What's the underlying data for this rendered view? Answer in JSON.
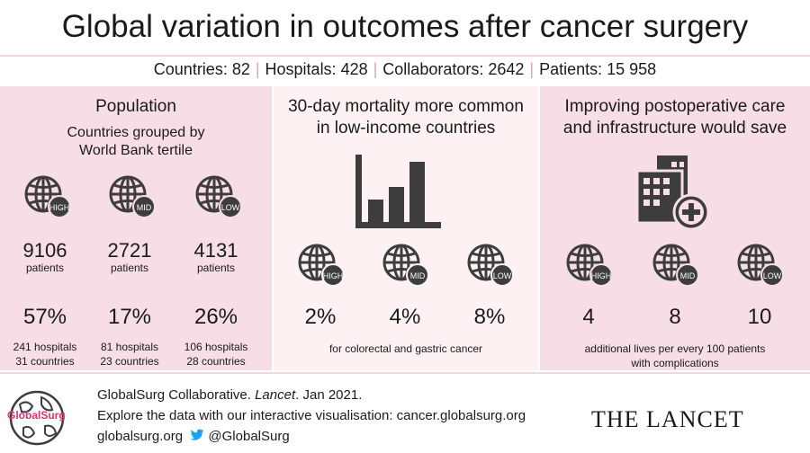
{
  "title": "Global variation in outcomes after cancer surgery",
  "stats": {
    "countries": "Countries: 82",
    "hospitals": "Hospitals: 428",
    "collaborators": "Collaborators: 2642",
    "patients": "Patients: 15 958",
    "separator": "|"
  },
  "population": {
    "title": "Population",
    "subtitle_line1": "Countries grouped by",
    "subtitle_line2": "World Bank tertile",
    "groups": [
      {
        "badge": "HIGH",
        "count": "9106",
        "unit": "patients",
        "pct": "57%",
        "hospitals": "241 hospitals",
        "countries": "31 countries"
      },
      {
        "badge": "MID",
        "count": "2721",
        "unit": "patients",
        "pct": "17%",
        "hospitals": "81 hospitals",
        "countries": "23 countries"
      },
      {
        "badge": "LOW",
        "count": "4131",
        "unit": "patients",
        "pct": "26%",
        "hospitals": "106 hospitals",
        "countries": "28 countries"
      }
    ]
  },
  "mortality": {
    "title_line1": "30-day mortality more common",
    "title_line2": "in low-income countries",
    "groups": [
      {
        "badge": "HIGH",
        "value": "2%"
      },
      {
        "badge": "MID",
        "value": "4%"
      },
      {
        "badge": "LOW",
        "value": "8%"
      }
    ],
    "note": "for colorectal and gastric cancer"
  },
  "care": {
    "title_line1": "Improving postoperative care",
    "title_line2": "and infrastructure would save",
    "groups": [
      {
        "badge": "HIGH",
        "value": "4"
      },
      {
        "badge": "MID",
        "value": "8"
      },
      {
        "badge": "LOW",
        "value": "10"
      }
    ],
    "note_line1": "additional lives per every 100 patients",
    "note_line2": "with complications"
  },
  "footer": {
    "citation_prefix": "GlobalSurg Collaborative. ",
    "citation_journal": "Lancet",
    "citation_suffix": ". Jan 2021.",
    "explore": "Explore the data with our interactive visualisation: cancer.globalsurg.org",
    "website": "globalsurg.org",
    "twitter": "@GlobalSurg",
    "logo_text": "GlobalSurg",
    "journal_logo": "THE LANCET"
  },
  "icons": {
    "globe": "globe-icon",
    "bar_chart": "bar-chart-icon",
    "hospital": "hospital-icon",
    "twitter": "twitter-bird-icon"
  },
  "colors": {
    "panel_pink": "#f7dde5",
    "panel_light": "#fdf1f4",
    "icon_grey": "#3d3d3d",
    "brand_pink": "#e0336f",
    "twitter_blue": "#1da1f2"
  }
}
